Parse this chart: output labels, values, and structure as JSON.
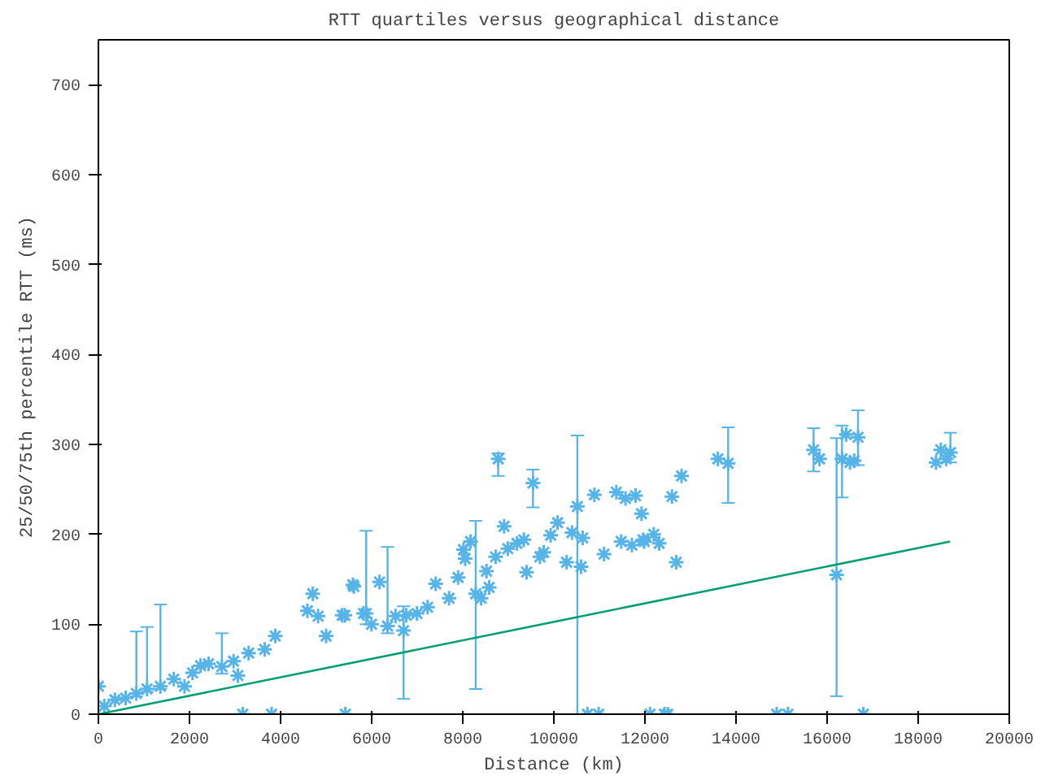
{
  "chart_data": {
    "type": "scatter",
    "title": "RTT quartiles versus geographical distance",
    "xlabel": "Distance (km)",
    "ylabel": "25/50/75th percentile RTT (ms)",
    "xlim": [
      0,
      20000
    ],
    "xticks": [
      0,
      2000,
      4000,
      6000,
      8000,
      10000,
      12000,
      14000,
      16000,
      18000,
      20000
    ],
    "ylim": [
      0,
      750
    ],
    "yticks": [
      0,
      100,
      200,
      300,
      400,
      500,
      600,
      700
    ],
    "grid": false,
    "series": [
      {
        "color": "#56b4e9",
        "marker": "cross",
        "x": [
          0,
          130,
          363,
          599,
          834,
          1068,
          1362,
          1655,
          1891,
          2067,
          2243,
          2419,
          2711,
          2968,
          3063,
          3169,
          3299,
          3651,
          3803,
          3884,
          4589,
          4707,
          4824,
          5000,
          5352,
          5411,
          5422,
          5587,
          5610,
          5821,
          5880,
          5997,
          6173,
          6349,
          6525,
          6701,
          6760,
          6996,
          7229,
          7405,
          7700,
          7898,
          8017,
          8052,
          8170,
          8285,
          8404,
          8521,
          8580,
          8722,
          8778,
          8908,
          8989,
          9190,
          9342,
          9401,
          9542,
          9694,
          9778,
          9930,
          10081,
          10281,
          10399,
          10517,
          10598,
          10633,
          10739,
          10891,
          10985,
          11102,
          11373,
          11479,
          11573,
          11714,
          11795,
          11926,
          11961,
          11985,
          12112,
          12193,
          12313,
          12429,
          12500,
          12594,
          12687,
          12804,
          13602,
          13827,
          14894,
          15140,
          15703,
          15834,
          16208,
          16327,
          16420,
          16502,
          16595,
          16679,
          16796,
          18391,
          18497,
          18614,
          18708
        ],
        "values": [
          31,
          9,
          16,
          18,
          23,
          28,
          31,
          39,
          31,
          46,
          54,
          56,
          53,
          59,
          43,
          0,
          68,
          72,
          0,
          87,
          115,
          134,
          109,
          87,
          110,
          110,
          0,
          144,
          142,
          112,
          112,
          100,
          147,
          98,
          109,
          93,
          110,
          112,
          119,
          145,
          129,
          152,
          183,
          173,
          192,
          134,
          129,
          159,
          141,
          175,
          284,
          209,
          184,
          190,
          194,
          158,
          257,
          175,
          180,
          199,
          213,
          169,
          202,
          231,
          164,
          196,
          0,
          244,
          0,
          178,
          247,
          192,
          240,
          188,
          243,
          223,
          194,
          192,
          0,
          200,
          190,
          0,
          0,
          242,
          169,
          265,
          284,
          279,
          0,
          0,
          294,
          284,
          155,
          284,
          311,
          280,
          282,
          308,
          0,
          280,
          294,
          284,
          291
        ],
        "errors": [
          null,
          null,
          null,
          null,
          [
            20,
            92
          ],
          [
            25,
            97
          ],
          [
            28,
            122
          ],
          null,
          null,
          null,
          null,
          null,
          [
            45,
            90
          ],
          null,
          null,
          null,
          null,
          null,
          null,
          null,
          null,
          null,
          null,
          null,
          null,
          null,
          null,
          null,
          null,
          null,
          [
            100,
            204
          ],
          null,
          null,
          [
            90,
            186
          ],
          null,
          [
            17,
            120
          ],
          null,
          null,
          null,
          null,
          null,
          null,
          null,
          null,
          null,
          [
            28,
            215
          ],
          null,
          null,
          null,
          null,
          [
            265,
            290
          ],
          null,
          null,
          null,
          null,
          null,
          [
            230,
            272
          ],
          null,
          null,
          null,
          null,
          null,
          null,
          [
            0,
            310
          ],
          null,
          null,
          null,
          null,
          null,
          null,
          null,
          null,
          null,
          null,
          null,
          null,
          null,
          null,
          null,
          null,
          null,
          null,
          null,
          null,
          null,
          null,
          null,
          [
            235,
            319
          ],
          null,
          null,
          [
            270,
            318
          ],
          null,
          [
            20,
            307
          ],
          [
            241,
            321
          ],
          null,
          null,
          null,
          [
            277,
            338
          ],
          null,
          null,
          null,
          null,
          [
            280,
            313
          ]
        ]
      },
      {
        "type": "line",
        "color": "#009e73",
        "marker": "none",
        "x": [
          0,
          18700
        ],
        "values": [
          0,
          192
        ]
      }
    ]
  }
}
